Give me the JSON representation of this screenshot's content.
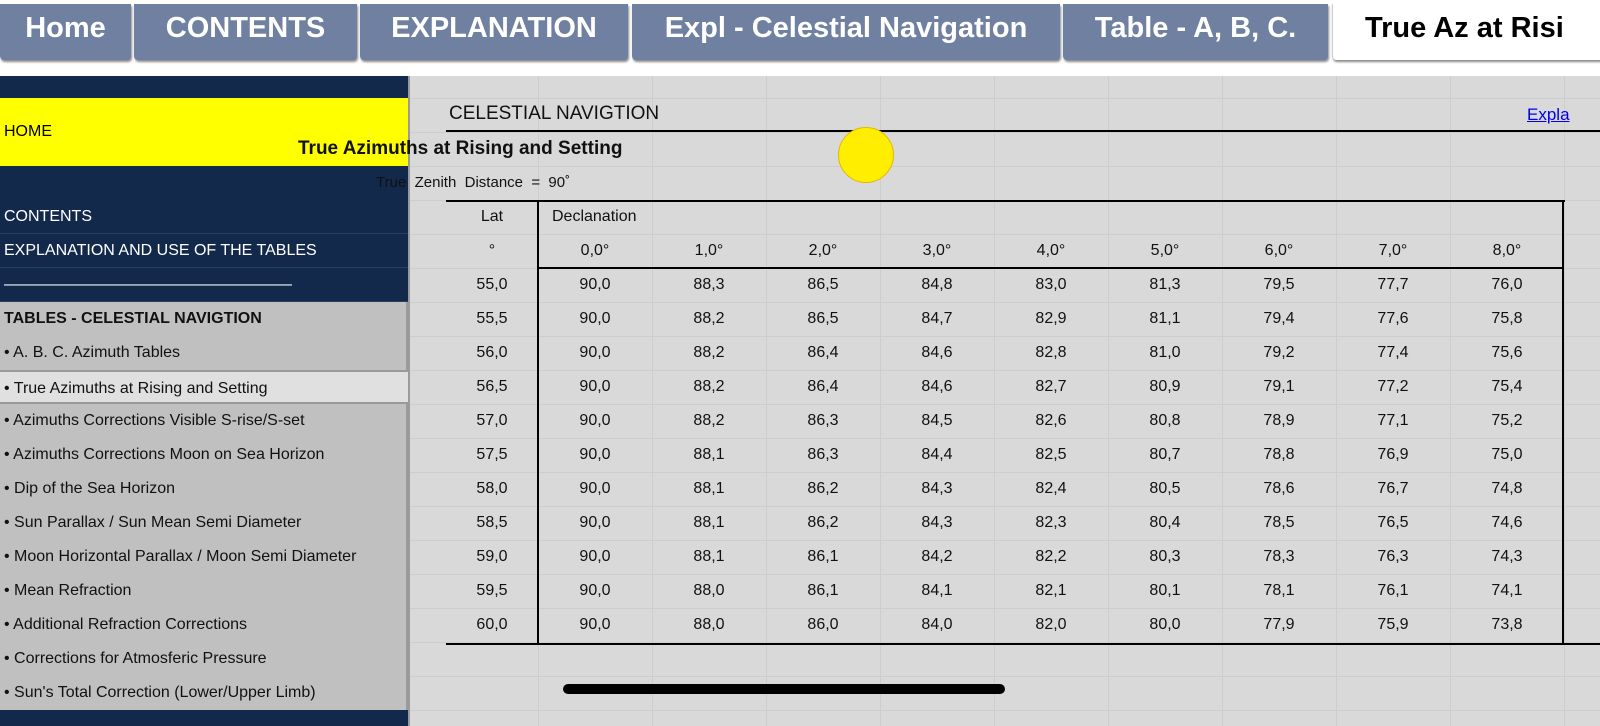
{
  "tabs": [
    "Home",
    "CONTENTS",
    "EXPLANATION",
    "Expl - Celestial Navigation",
    "Table - A, B, C.",
    "True Az at Risi"
  ],
  "sidebar": {
    "items": [
      "HOME",
      "CONTENTS",
      "EXPLANATION AND USE OF THE TABLES",
      "——————————————————",
      "TABLES - CELESTIAL NAVIGTION",
      "• A. B. C. Azimuth Tables",
      "• True Azimuths at Rising and Setting",
      "• Azimuths Corrections Visible S-rise/S-set",
      "• Azimuths Corrections Moon on Sea Horizon",
      "• Dip of the Sea Horizon",
      "• Sun Parallax / Sun Mean Semi Diameter",
      "• Moon Horizontal Parallax / Moon Semi Diameter",
      "• Mean Refraction",
      "• Additional Refraction Corrections",
      "• Corrections for Atmosferic Pressure",
      "• Sun's Total Correction (Lower/Upper Limb)"
    ]
  },
  "sheet": {
    "heading": "CELESTIAL NAVIGTION",
    "link": "Expla",
    "title": "True Azimuths at Rising and Setting",
    "subtitle": "True  Zenith  Distance  =  90˚",
    "table": {
      "lat_header": "Lat",
      "decl_header": "Declanation",
      "lat_unit": "°",
      "columns": [
        "0,0°",
        "1,0°",
        "2,0°",
        "3,0°",
        "4,0°",
        "5,0°",
        "6,0°",
        "7,0°",
        "8,0°"
      ],
      "rows": [
        [
          "55,0",
          "90,0",
          "88,3",
          "86,5",
          "84,8",
          "83,0",
          "81,3",
          "79,5",
          "77,7",
          "76,0"
        ],
        [
          "55,5",
          "90,0",
          "88,2",
          "86,5",
          "84,7",
          "82,9",
          "81,1",
          "79,4",
          "77,6",
          "75,8"
        ],
        [
          "56,0",
          "90,0",
          "88,2",
          "86,4",
          "84,6",
          "82,8",
          "81,0",
          "79,2",
          "77,4",
          "75,6"
        ],
        [
          "56,5",
          "90,0",
          "88,2",
          "86,4",
          "84,6",
          "82,7",
          "80,9",
          "79,1",
          "77,2",
          "75,4"
        ],
        [
          "57,0",
          "90,0",
          "88,2",
          "86,3",
          "84,5",
          "82,6",
          "80,8",
          "78,9",
          "77,1",
          "75,2"
        ],
        [
          "57,5",
          "90,0",
          "88,1",
          "86,3",
          "84,4",
          "82,5",
          "80,7",
          "78,8",
          "76,9",
          "75,0"
        ],
        [
          "58,0",
          "90,0",
          "88,1",
          "86,2",
          "84,3",
          "82,4",
          "80,5",
          "78,6",
          "76,7",
          "74,8"
        ],
        [
          "58,5",
          "90,0",
          "88,1",
          "86,2",
          "84,3",
          "82,3",
          "80,4",
          "78,5",
          "76,5",
          "74,6"
        ],
        [
          "59,0",
          "90,0",
          "88,1",
          "86,1",
          "84,2",
          "82,2",
          "80,3",
          "78,3",
          "76,3",
          "74,3"
        ],
        [
          "59,5",
          "90,0",
          "88,0",
          "86,1",
          "84,1",
          "82,1",
          "80,1",
          "78,1",
          "76,1",
          "74,1"
        ],
        [
          "60,0",
          "90,0",
          "88,0",
          "86,0",
          "84,0",
          "82,0",
          "80,0",
          "77,9",
          "75,9",
          "73,8"
        ]
      ]
    }
  }
}
